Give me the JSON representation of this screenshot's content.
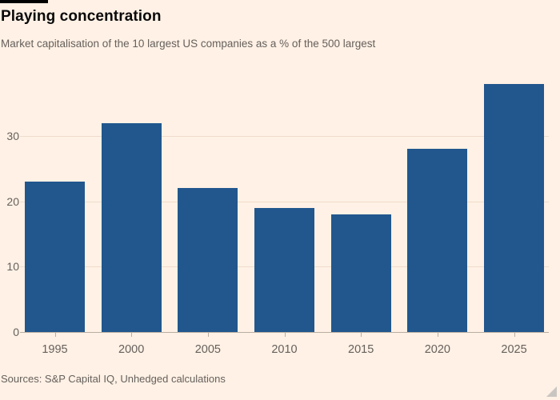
{
  "header": {
    "title": "Playing concentration",
    "subtitle": "Market capitalisation of the 10 largest US companies as a % of the 500 largest"
  },
  "chart_data": {
    "type": "bar",
    "title": "Playing concentration",
    "subtitle": "Market capitalisation of the 10 largest US companies as a % of the 500 largest",
    "categories": [
      "1995",
      "2000",
      "2005",
      "2010",
      "2015",
      "2020",
      "2025"
    ],
    "values": [
      23,
      32,
      22,
      19,
      18,
      28,
      38
    ],
    "xlabel": "",
    "ylabel": "",
    "ylim": [
      0,
      40
    ],
    "yticks": [
      0,
      10,
      20,
      30
    ],
    "grid": "horizontal",
    "legend": "none",
    "bar_color": "#21578D",
    "background_color": "#FFF1E5",
    "text_color": "#66605C"
  },
  "footer": {
    "source": "Sources: S&P Capital IQ, Unhedged calculations"
  }
}
